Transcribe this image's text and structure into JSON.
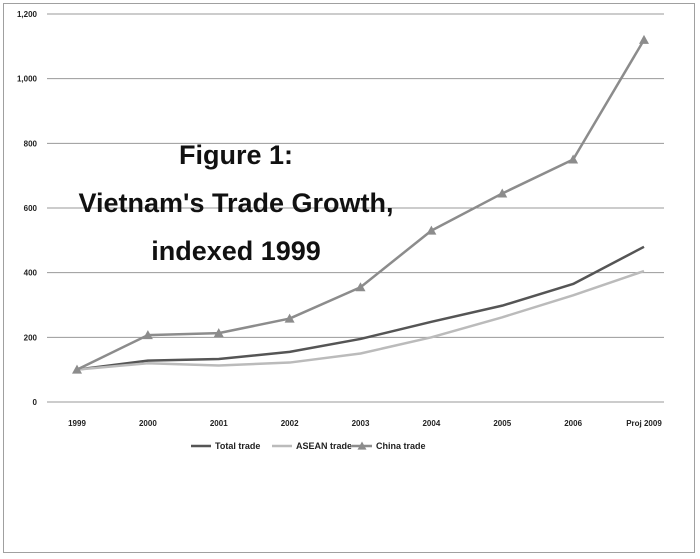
{
  "chart_data": {
    "type": "line",
    "title_lines": [
      "Figure 1:",
      "Vietnam's Trade Growth,",
      "indexed 1999"
    ],
    "categories": [
      "1999",
      "2000",
      "2001",
      "2002",
      "2003",
      "2004",
      "2005",
      "2006",
      "Proj 2009"
    ],
    "y_ticks": [
      "0",
      "200",
      "400",
      "600",
      "800",
      "1,000",
      "1,200"
    ],
    "ylim": [
      0,
      1200
    ],
    "grid": true,
    "legend_position": "bottom",
    "series": [
      {
        "name": "Total trade",
        "color": "#555555",
        "marker": "none",
        "values": [
          100,
          128,
          133,
          155,
          195,
          248,
          298,
          365,
          480
        ]
      },
      {
        "name": "ASEAN trade",
        "color": "#bbbbbb",
        "marker": "none",
        "values": [
          100,
          120,
          113,
          122,
          150,
          200,
          262,
          330,
          405
        ]
      },
      {
        "name": "China trade",
        "color": "#8c8c8c",
        "marker": "triangle",
        "values": [
          100,
          207,
          213,
          258,
          355,
          530,
          645,
          750,
          1120
        ]
      }
    ]
  }
}
